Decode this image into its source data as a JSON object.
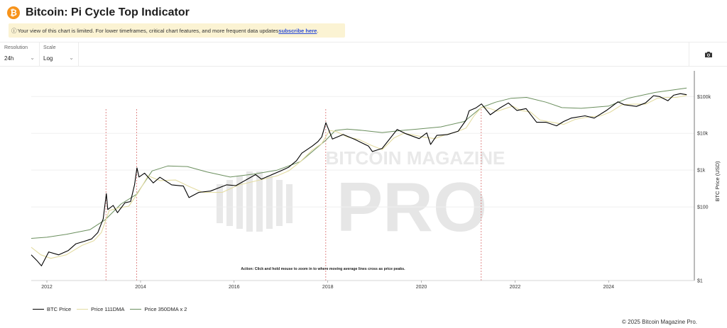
{
  "header": {
    "title": "Bitcoin: Pi Cycle Top Indicator",
    "logo_glyph": "₿"
  },
  "notice": {
    "icon": "ⓘ",
    "text": "Your view of this chart is limited. For lower timeframes, critical chart features, and more frequent data updates ",
    "link": "subscribe here",
    "suffix": "."
  },
  "controls": {
    "resolution": {
      "label": "Resolution",
      "value": "24h"
    },
    "scale": {
      "label": "Scale",
      "value": "Log"
    },
    "camera_icon": "camera-icon"
  },
  "colors": {
    "price": "#000000",
    "dma111": "#e3dca2",
    "dma350x2": "#6b8f5e",
    "cross": "#d96c6c",
    "brand": "#f7931a",
    "link": "#2a4bd7"
  },
  "chart_data": {
    "type": "line",
    "title": "Bitcoin: Pi Cycle Top Indicator",
    "ylabel": "BTC Price (USD)",
    "yscale": "log",
    "ylim": [
      1,
      500000
    ],
    "xlim": [
      "2011-09-01",
      "2025-10-31"
    ],
    "x_ticks": [
      "2012",
      "2014",
      "2016",
      "2018",
      "2020",
      "2022",
      "2024"
    ],
    "y_ticks": [
      {
        "value": 1,
        "label": "$1"
      },
      {
        "value": 100,
        "label": "$100"
      },
      {
        "value": 1000,
        "label": "$1k"
      },
      {
        "value": 10000,
        "label": "$10k"
      },
      {
        "value": 100000,
        "label": "$100k"
      }
    ],
    "annotation": "Action: Click and hold mouse to zoom in to where moving average lines cross as price peaks.",
    "watermark": [
      "BITCOIN MAGAZINE",
      "PRO"
    ],
    "crossovers": [
      "2013-04-06",
      "2013-12-01",
      "2017-12-16",
      "2021-04-12"
    ],
    "series": [
      {
        "name": "BTC Price",
        "x": [
          "2011-09-01",
          "2011-10-15",
          "2011-11-20",
          "2012-01-15",
          "2012-04-01",
          "2012-06-15",
          "2012-08-15",
          "2012-10-15",
          "2012-12-15",
          "2013-02-01",
          "2013-03-15",
          "2013-04-09",
          "2013-04-20",
          "2013-06-01",
          "2013-07-05",
          "2013-09-01",
          "2013-10-15",
          "2013-11-15",
          "2013-12-04",
          "2013-12-20",
          "2014-02-01",
          "2014-04-10",
          "2014-06-01",
          "2014-09-01",
          "2014-12-01",
          "2015-01-14",
          "2015-04-01",
          "2015-07-01",
          "2015-11-04",
          "2016-01-15",
          "2016-06-17",
          "2016-08-01",
          "2016-12-31",
          "2017-03-01",
          "2017-05-01",
          "2017-06-12",
          "2017-09-01",
          "2017-10-15",
          "2017-11-15",
          "2017-12-17",
          "2018-02-06",
          "2018-05-01",
          "2018-08-01",
          "2018-11-15",
          "2018-12-15",
          "2019-03-01",
          "2019-06-26",
          "2019-09-01",
          "2019-12-15",
          "2020-02-12",
          "2020-03-13",
          "2020-05-01",
          "2020-07-20",
          "2020-10-15",
          "2020-12-15",
          "2021-01-08",
          "2021-03-01",
          "2021-04-14",
          "2021-06-22",
          "2021-09-01",
          "2021-11-10",
          "2022-01-15",
          "2022-03-28",
          "2022-06-18",
          "2022-09-01",
          "2022-11-21",
          "2023-01-15",
          "2023-03-15",
          "2023-07-01",
          "2023-09-11",
          "2023-12-15",
          "2024-03-14",
          "2024-05-01",
          "2024-08-05",
          "2024-10-15",
          "2024-12-17",
          "2025-02-01",
          "2025-04-08",
          "2025-05-22",
          "2025-07-14",
          "2025-09-01"
        ],
        "values": [
          5,
          3.5,
          2.5,
          6,
          5,
          6.5,
          10,
          11.5,
          13.5,
          20,
          47,
          230,
          85,
          110,
          70,
          130,
          140,
          400,
          1150,
          650,
          830,
          450,
          640,
          400,
          370,
          180,
          250,
          270,
          400,
          380,
          760,
          570,
          960,
          1200,
          1800,
          2900,
          4500,
          5900,
          8000,
          19500,
          7000,
          9300,
          6800,
          4500,
          3200,
          3900,
          12800,
          9800,
          7200,
          10300,
          5000,
          8800,
          9200,
          11500,
          23000,
          41000,
          49000,
          63000,
          32000,
          48000,
          67000,
          42000,
          47000,
          20000,
          20000,
          16000,
          21000,
          26000,
          30000,
          26000,
          42000,
          72000,
          60000,
          54000,
          67000,
          106000,
          100000,
          77000,
          109000,
          120000,
          112000
        ]
      },
      {
        "name": "Price 111DMA",
        "x": [
          "2011-09-01",
          "2011-11-15",
          "2012-02-01",
          "2012-06-01",
          "2012-10-01",
          "2013-01-01",
          "2013-03-01",
          "2013-05-01",
          "2013-07-15",
          "2013-10-01",
          "2013-12-15",
          "2014-03-01",
          "2014-06-01",
          "2014-10-01",
          "2015-01-15",
          "2015-05-01",
          "2015-10-01",
          "2016-02-01",
          "2016-07-01",
          "2016-12-01",
          "2017-03-01",
          "2017-06-01",
          "2017-09-01",
          "2017-11-15",
          "2018-01-15",
          "2018-03-15",
          "2018-06-01",
          "2018-09-01",
          "2018-12-01",
          "2019-03-01",
          "2019-06-01",
          "2019-08-15",
          "2019-11-01",
          "2020-01-15",
          "2020-04-15",
          "2020-07-01",
          "2020-10-01",
          "2020-12-15",
          "2021-02-15",
          "2021-04-15",
          "2021-06-15",
          "2021-08-15",
          "2021-10-15",
          "2021-12-15",
          "2022-02-15",
          "2022-05-01",
          "2022-07-15",
          "2022-10-15",
          "2023-01-15",
          "2023-04-15",
          "2023-08-01",
          "2023-11-01",
          "2024-01-15",
          "2024-04-15",
          "2024-07-15",
          "2024-10-15",
          "2025-01-15",
          "2025-04-01",
          "2025-06-15",
          "2025-09-01"
        ],
        "values": [
          8,
          5,
          4,
          5,
          9,
          12,
          20,
          80,
          95,
          105,
          250,
          700,
          520,
          540,
          360,
          250,
          250,
          390,
          520,
          700,
          950,
          1700,
          3500,
          5300,
          12000,
          11000,
          8000,
          6800,
          4800,
          3600,
          7500,
          10000,
          9000,
          8000,
          7200,
          9000,
          11000,
          14000,
          30000,
          52000,
          48000,
          40000,
          47000,
          55000,
          42000,
          38000,
          23000,
          20000,
          17500,
          24000,
          28000,
          30000,
          38000,
          60000,
          62000,
          62000,
          90000,
          95000,
          95000,
          108000
        ]
      },
      {
        "name": "Price 350DMA x 2",
        "x": [
          "2011-09-01",
          "2012-01-01",
          "2012-06-01",
          "2012-12-01",
          "2013-04-01",
          "2013-08-01",
          "2013-12-01",
          "2014-04-01",
          "2014-08-01",
          "2015-01-01",
          "2015-06-01",
          "2015-12-01",
          "2016-06-01",
          "2016-12-01",
          "2017-06-01",
          "2017-12-16",
          "2018-03-01",
          "2018-06-01",
          "2018-10-01",
          "2019-03-01",
          "2019-08-01",
          "2019-12-01",
          "2020-06-01",
          "2020-12-01",
          "2021-04-12",
          "2021-08-01",
          "2021-12-01",
          "2022-04-01",
          "2022-09-01",
          "2023-01-01",
          "2023-06-01",
          "2024-01-01",
          "2024-06-01",
          "2025-01-01",
          "2025-09-01"
        ],
        "values": [
          14,
          15,
          18,
          24,
          45,
          120,
          220,
          950,
          1300,
          1250,
          900,
          650,
          780,
          1000,
          1700,
          6500,
          12000,
          13000,
          12000,
          10500,
          12000,
          13000,
          15000,
          21000,
          50000,
          70000,
          90000,
          95000,
          70000,
          50000,
          48000,
          55000,
          90000,
          130000,
          170000
        ]
      }
    ]
  },
  "legend": [
    {
      "label": "BTC Price",
      "color": "#000000"
    },
    {
      "label": "Price 111DMA",
      "color": "#e3dca2"
    },
    {
      "label": "Price 350DMA x 2",
      "color": "#6b8f5e"
    }
  ],
  "footer": {
    "copyright": "© 2025 Bitcoin Magazine Pro."
  }
}
